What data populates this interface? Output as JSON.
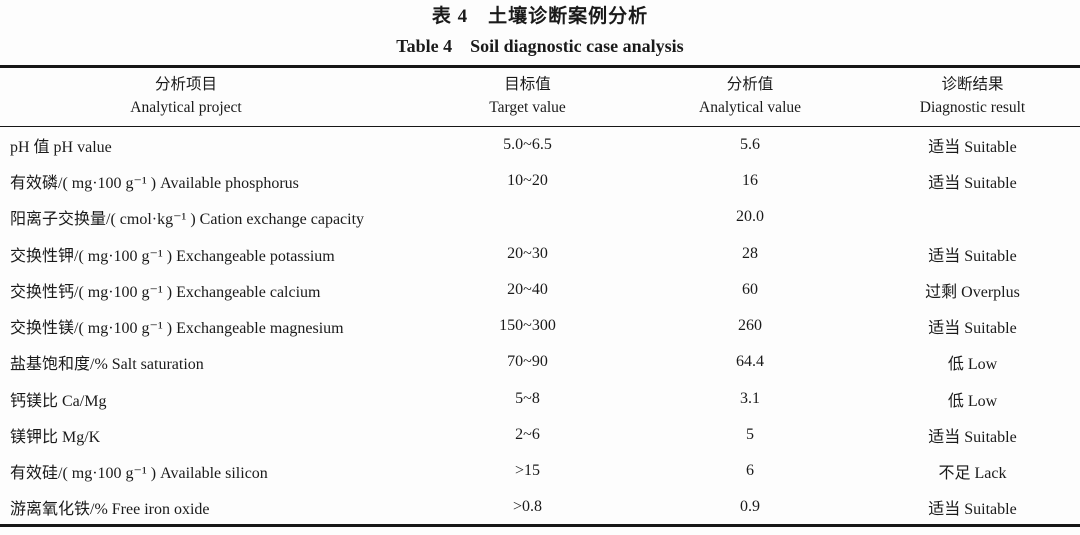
{
  "page": {
    "background": "#fdfdfd",
    "text_color": "#1a1a1a",
    "rule_color": "#161616"
  },
  "title": {
    "zh": "表 4　土壤诊断案例分析",
    "en": "Table 4　Soil diagnostic case analysis"
  },
  "table": {
    "columns": [
      {
        "zh": "分析项目",
        "en": "Analytical project"
      },
      {
        "zh": "目标值",
        "en": "Target value"
      },
      {
        "zh": "分析值",
        "en": "Analytical value"
      },
      {
        "zh": "诊断结果",
        "en": "Diagnostic result"
      }
    ],
    "rows": [
      {
        "project": "pH 值 pH value",
        "target": "5.0~6.5",
        "analytical": "5.6",
        "diagnostic": "适当 Suitable"
      },
      {
        "project": "有效磷/( mg·100 g⁻¹ ) Available phosphorus",
        "target": "10~20",
        "analytical": "16",
        "diagnostic": "适当 Suitable"
      },
      {
        "project": "阳离子交换量/( cmol·kg⁻¹ ) Cation exchange capacity",
        "target": "",
        "analytical": "20.0",
        "diagnostic": ""
      },
      {
        "project": "交换性钾/( mg·100 g⁻¹ ) Exchangeable potassium",
        "target": "20~30",
        "analytical": "28",
        "diagnostic": "适当 Suitable"
      },
      {
        "project": "交换性钙/( mg·100 g⁻¹ ) Exchangeable calcium",
        "target": "20~40",
        "analytical": "60",
        "diagnostic": "过剩 Overplus"
      },
      {
        "project": "交换性镁/( mg·100 g⁻¹ ) Exchangeable magnesium",
        "target": "150~300",
        "analytical": "260",
        "diagnostic": "适当 Suitable"
      },
      {
        "project": "盐基饱和度/% Salt saturation",
        "target": "70~90",
        "analytical": "64.4",
        "diagnostic": "低 Low"
      },
      {
        "project": "钙镁比 Ca/Mg",
        "target": "5~8",
        "analytical": "3.1",
        "diagnostic": "低 Low"
      },
      {
        "project": "镁钾比 Mg/K",
        "target": "2~6",
        "analytical": "5",
        "diagnostic": "适当 Suitable"
      },
      {
        "project": "有效硅/( mg·100 g⁻¹ ) Available silicon",
        "target": ">15",
        "analytical": "6",
        "diagnostic": "不足 Lack"
      },
      {
        "project": "游离氧化铁/% Free iron oxide",
        "target": ">0.8",
        "analytical": "0.9",
        "diagnostic": "适当 Suitable"
      }
    ]
  }
}
